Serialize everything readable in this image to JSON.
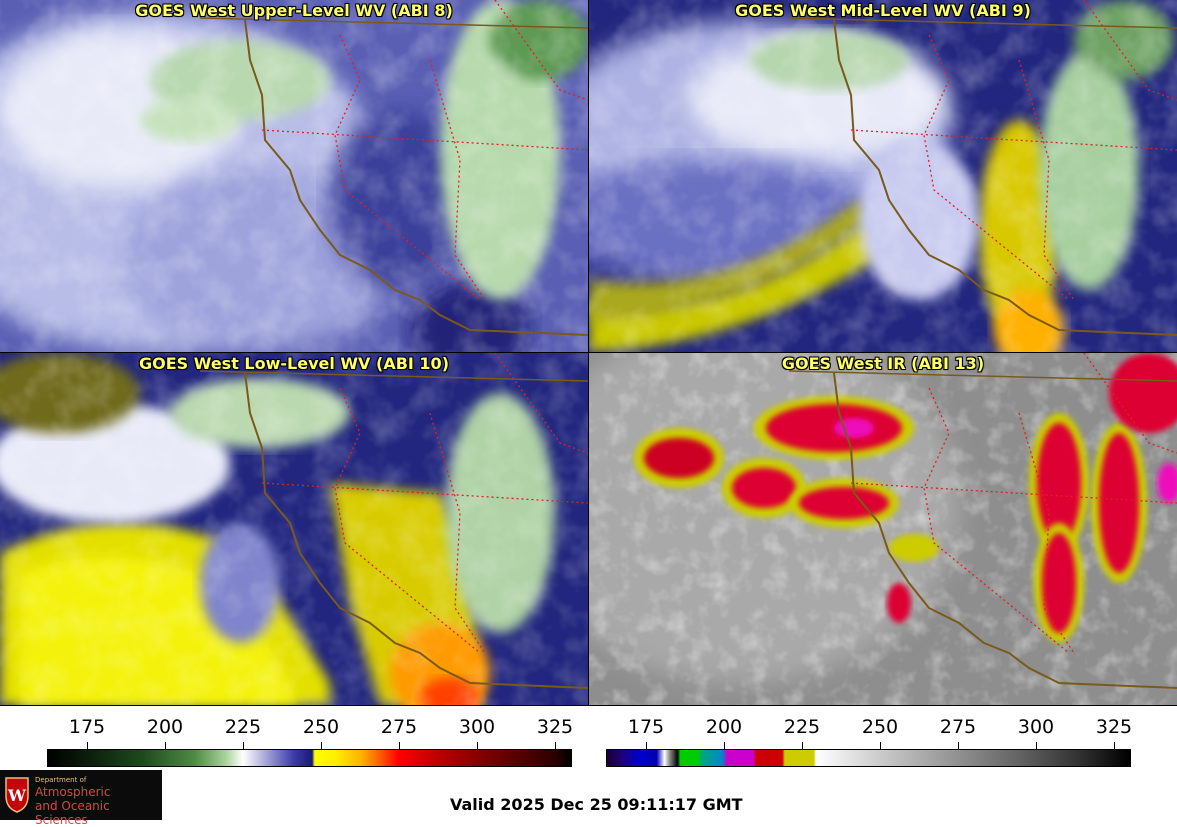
{
  "panels": {
    "upper": {
      "title": "GOES West Upper-Level WV (ABI 8)"
    },
    "mid": {
      "title": "GOES West Mid-Level WV (ABI 9)"
    },
    "low": {
      "title": "GOES West Low-Level WV (ABI 10)"
    },
    "ir": {
      "title": "GOES West IR (ABI 13)"
    }
  },
  "colorbars": {
    "wv": {
      "ticks": [
        "175",
        "200",
        "225",
        "250",
        "275",
        "300",
        "325"
      ]
    },
    "ir": {
      "ticks": [
        "175",
        "200",
        "225",
        "250",
        "275",
        "300",
        "325"
      ]
    }
  },
  "footer": {
    "valid_time": "Valid 2025 Dec 25 09:11:17 GMT",
    "logo_dept": "Department of",
    "logo_line1": "Atmospheric",
    "logo_line2": "and Oceanic Sciences"
  },
  "colors": {
    "title_text": "#ffff66",
    "coastline": "#7a5a1a",
    "state_lines": "#dd2222",
    "wv_dry": "#ffff00",
    "wv_moist": "#ffffff",
    "ir_cold_cloud": "#dd0033"
  }
}
